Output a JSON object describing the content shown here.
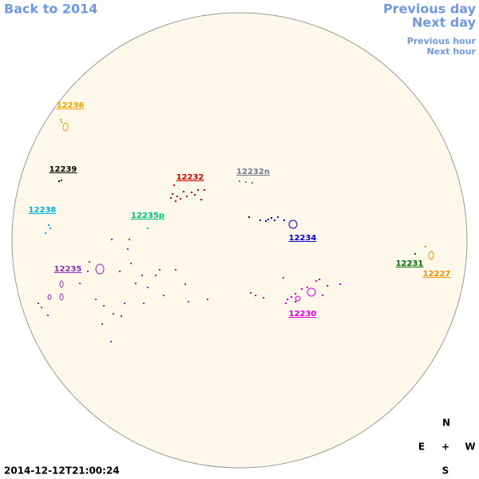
{
  "nav": {
    "back": "Back to 2014",
    "previous_day": "Previous day",
    "next_day": "Next day",
    "previous_hour": "Previous hour",
    "next_hour": "Next hour"
  },
  "regions": [
    {
      "label": "12236",
      "color": "#f0a000"
    },
    {
      "label": "12239",
      "color": "#000000"
    },
    {
      "label": "12232",
      "color": "#d00000"
    },
    {
      "label": "12232n",
      "color": "#708090"
    },
    {
      "label": "12238",
      "color": "#00b0e0"
    },
    {
      "label": "12235p",
      "color": "#00c080"
    },
    {
      "label": "12234",
      "color": "#0000d0"
    },
    {
      "label": "12231",
      "color": "#007000"
    },
    {
      "label": "12227",
      "color": "#f09000"
    },
    {
      "label": "12235",
      "color": "#9030c0"
    },
    {
      "label": "12230",
      "color": "#e000e0"
    }
  ],
  "compass": {
    "north": "N",
    "east": "E",
    "center": "+",
    "west": "W",
    "south": "S"
  },
  "timestamp": "2014-12-12T21:00:24"
}
